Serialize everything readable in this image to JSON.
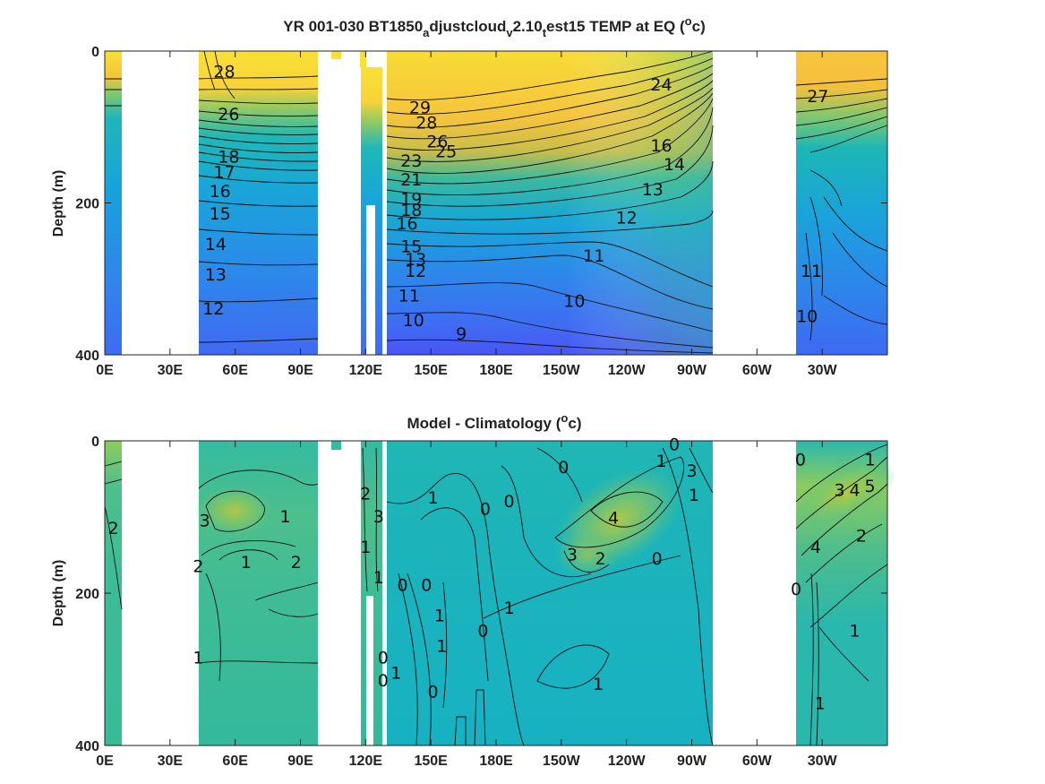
{
  "chart_data": [
    {
      "type": "heatmap",
      "title_parts": [
        "YR 001-030 BT1850",
        "a",
        "djustcloud",
        "v",
        "2.10",
        "t",
        "est15 TEMP at EQ (",
        "o",
        "c)"
      ],
      "ylabel": "Depth (m)",
      "xlabel": "",
      "x_ticks": [
        "0E",
        "30E",
        "60E",
        "90E",
        "120E",
        "150E",
        "180E",
        "150W",
        "120W",
        "90W",
        "60W",
        "30W"
      ],
      "x_tick_values": [
        0,
        30,
        60,
        90,
        120,
        150,
        180,
        210,
        240,
        270,
        300,
        330
      ],
      "y_ticks": [
        "0",
        "200",
        "400"
      ],
      "y_tick_values": [
        0,
        200,
        400
      ],
      "xlim": [
        0,
        360
      ],
      "ylim": [
        400,
        0
      ],
      "colormap": "parula",
      "land_gaps_lon": [
        [
          8,
          43
        ],
        [
          97,
          118
        ],
        [
          128.5,
          129.5
        ],
        [
          279,
          318
        ]
      ],
      "contour_labels": [
        {
          "text": "28",
          "lon": 55,
          "depth": 28
        },
        {
          "text": "26",
          "lon": 57,
          "depth": 84
        },
        {
          "text": "18",
          "lon": 57,
          "depth": 140
        },
        {
          "text": "17",
          "lon": 55,
          "depth": 160
        },
        {
          "text": "16",
          "lon": 53,
          "depth": 185
        },
        {
          "text": "15",
          "lon": 53,
          "depth": 215
        },
        {
          "text": "14",
          "lon": 51,
          "depth": 255
        },
        {
          "text": "13",
          "lon": 51,
          "depth": 295
        },
        {
          "text": "12",
          "lon": 50,
          "depth": 340
        },
        {
          "text": "29",
          "lon": 145,
          "depth": 75
        },
        {
          "text": "28",
          "lon": 148,
          "depth": 95
        },
        {
          "text": "26",
          "lon": 153,
          "depth": 120
        },
        {
          "text": "25",
          "lon": 157,
          "depth": 133
        },
        {
          "text": "23",
          "lon": 141,
          "depth": 145
        },
        {
          "text": "21",
          "lon": 141,
          "depth": 170
        },
        {
          "text": "19",
          "lon": 141,
          "depth": 195
        },
        {
          "text": "18",
          "lon": 141,
          "depth": 210
        },
        {
          "text": "16",
          "lon": 139,
          "depth": 228
        },
        {
          "text": "15",
          "lon": 141,
          "depth": 258
        },
        {
          "text": "13",
          "lon": 143,
          "depth": 275
        },
        {
          "text": "12",
          "lon": 143,
          "depth": 290
        },
        {
          "text": "11",
          "lon": 140,
          "depth": 323
        },
        {
          "text": "10",
          "lon": 142,
          "depth": 355
        },
        {
          "text": "9",
          "lon": 164,
          "depth": 373
        },
        {
          "text": "10",
          "lon": 216,
          "depth": 330
        },
        {
          "text": "11",
          "lon": 225,
          "depth": 270
        },
        {
          "text": "12",
          "lon": 240,
          "depth": 220
        },
        {
          "text": "13",
          "lon": 252,
          "depth": 183
        },
        {
          "text": "14",
          "lon": 262,
          "depth": 150
        },
        {
          "text": "16",
          "lon": 256,
          "depth": 125
        },
        {
          "text": "24",
          "lon": 256,
          "depth": 45
        },
        {
          "text": "27",
          "lon": 328,
          "depth": 60
        },
        {
          "text": "10",
          "lon": 323,
          "depth": 350
        },
        {
          "text": "11",
          "lon": 325,
          "depth": 290
        }
      ]
    },
    {
      "type": "heatmap",
      "title_parts": [
        "Model - Climatology (",
        "o",
        "c)"
      ],
      "ylabel": "Depth (m)",
      "xlabel": "",
      "x_ticks": [
        "0E",
        "30E",
        "60E",
        "90E",
        "120E",
        "150E",
        "180E",
        "150W",
        "120W",
        "90W",
        "60W",
        "30W"
      ],
      "x_tick_values": [
        0,
        30,
        60,
        90,
        120,
        150,
        180,
        210,
        240,
        270,
        300,
        330
      ],
      "y_ticks": [
        "0",
        "200",
        "400"
      ],
      "y_tick_values": [
        0,
        200,
        400
      ],
      "xlim": [
        0,
        360
      ],
      "ylim": [
        400,
        0
      ],
      "colormap": "parula",
      "land_gaps_lon": [
        [
          8,
          43
        ],
        [
          97,
          118
        ],
        [
          128.5,
          129.5
        ],
        [
          279,
          318
        ]
      ],
      "contour_labels": [
        {
          "text": "3",
          "lon": 46,
          "depth": 105
        },
        {
          "text": "1",
          "lon": 83,
          "depth": 100
        },
        {
          "text": "2",
          "lon": 4,
          "depth": 115
        },
        {
          "text": "1",
          "lon": 65,
          "depth": 160
        },
        {
          "text": "2",
          "lon": 88,
          "depth": 160
        },
        {
          "text": "2",
          "lon": 43,
          "depth": 165
        },
        {
          "text": "1",
          "lon": 43,
          "depth": 285
        },
        {
          "text": "2",
          "lon": 120,
          "depth": 70
        },
        {
          "text": "3",
          "lon": 126,
          "depth": 100
        },
        {
          "text": "1",
          "lon": 120,
          "depth": 140
        },
        {
          "text": "1",
          "lon": 126,
          "depth": 180
        },
        {
          "text": "1",
          "lon": 151,
          "depth": 75
        },
        {
          "text": "0",
          "lon": 137,
          "depth": 190
        },
        {
          "text": "0",
          "lon": 148,
          "depth": 190
        },
        {
          "text": "1",
          "lon": 154,
          "depth": 230
        },
        {
          "text": "1",
          "lon": 155,
          "depth": 270
        },
        {
          "text": "0",
          "lon": 128,
          "depth": 285
        },
        {
          "text": "0",
          "lon": 128,
          "depth": 315
        },
        {
          "text": "1",
          "lon": 134,
          "depth": 305
        },
        {
          "text": "0",
          "lon": 151,
          "depth": 330
        },
        {
          "text": "0",
          "lon": 175,
          "depth": 90
        },
        {
          "text": "0",
          "lon": 186,
          "depth": 80
        },
        {
          "text": "0",
          "lon": 174,
          "depth": 250
        },
        {
          "text": "1",
          "lon": 186,
          "depth": 220
        },
        {
          "text": "0",
          "lon": 211,
          "depth": 35
        },
        {
          "text": "3",
          "lon": 215,
          "depth": 150
        },
        {
          "text": "2",
          "lon": 228,
          "depth": 155
        },
        {
          "text": "4",
          "lon": 234,
          "depth": 102
        },
        {
          "text": "0",
          "lon": 262,
          "depth": 5
        },
        {
          "text": "1",
          "lon": 256,
          "depth": 27
        },
        {
          "text": "3",
          "lon": 270,
          "depth": 40
        },
        {
          "text": "1",
          "lon": 271,
          "depth": 72
        },
        {
          "text": "0",
          "lon": 254,
          "depth": 155
        },
        {
          "text": "1",
          "lon": 227,
          "depth": 320
        },
        {
          "text": "0",
          "lon": 320,
          "depth": 25
        },
        {
          "text": "1",
          "lon": 352,
          "depth": 25
        },
        {
          "text": "3",
          "lon": 338,
          "depth": 65
        },
        {
          "text": "4",
          "lon": 345,
          "depth": 65
        },
        {
          "text": "5",
          "lon": 352,
          "depth": 60
        },
        {
          "text": "2",
          "lon": 348,
          "depth": 125
        },
        {
          "text": "4",
          "lon": 327,
          "depth": 140
        },
        {
          "text": "1",
          "lon": 345,
          "depth": 250
        },
        {
          "text": "0",
          "lon": 318,
          "depth": 195
        },
        {
          "text": "1",
          "lon": 329,
          "depth": 345
        }
      ]
    }
  ]
}
